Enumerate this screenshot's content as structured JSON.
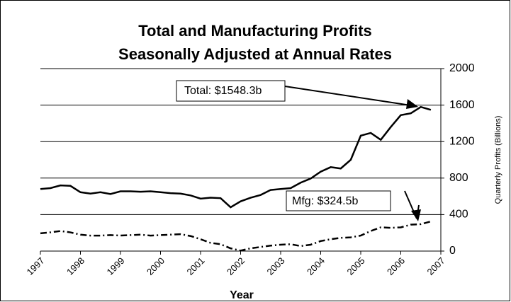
{
  "chart_data": {
    "type": "line",
    "title": [
      "Total and Manufacturing Profits",
      "Seasonally Adjusted at Annual Rates"
    ],
    "x_label": "Year",
    "y_label": "Quarterly Profits (Billions)",
    "y_axis_side": "right",
    "x": [
      1997,
      1997.25,
      1997.5,
      1997.75,
      1998,
      1998.25,
      1998.5,
      1998.75,
      1999,
      1999.25,
      1999.5,
      1999.75,
      2000,
      2000.25,
      2000.5,
      2000.75,
      2001,
      2001.25,
      2001.5,
      2001.75,
      2002,
      2002.25,
      2002.5,
      2002.75,
      2003,
      2003.25,
      2003.5,
      2003.75,
      2004,
      2004.25,
      2004.5,
      2004.75,
      2005,
      2005.25,
      2005.5,
      2005.75,
      2006,
      2006.25,
      2006.5,
      2006.75
    ],
    "series": [
      {
        "name": "Total",
        "color": "#000000",
        "line_style": "solid",
        "values": [
          680,
          690,
          720,
          715,
          645,
          630,
          645,
          625,
          655,
          655,
          650,
          655,
          645,
          635,
          630,
          610,
          575,
          585,
          580,
          480,
          545,
          585,
          615,
          670,
          680,
          690,
          750,
          795,
          870,
          920,
          905,
          1000,
          1265,
          1295,
          1220,
          1360,
          1490,
          1510,
          1580,
          1548.3
        ]
      },
      {
        "name": "Mfg",
        "color": "#000000",
        "line_style": "dashed",
        "values": [
          195,
          205,
          220,
          205,
          180,
          170,
          170,
          175,
          170,
          175,
          180,
          170,
          175,
          180,
          185,
          165,
          130,
          90,
          75,
          30,
          5,
          30,
          45,
          60,
          70,
          75,
          55,
          70,
          110,
          130,
          145,
          150,
          170,
          220,
          260,
          255,
          260,
          290,
          295,
          324.5
        ]
      }
    ],
    "annotations": [
      "Total: $1548.3b",
      "Mfg: $324.5b"
    ],
    "xlim": [
      1997,
      2007
    ],
    "xticks": [
      1997,
      1998,
      1999,
      2000,
      2001,
      2002,
      2003,
      2004,
      2005,
      2006,
      2007
    ],
    "ylim": [
      0,
      2000
    ],
    "yticks": [
      0,
      400,
      800,
      1200,
      1600,
      2000
    ],
    "grid": true
  }
}
